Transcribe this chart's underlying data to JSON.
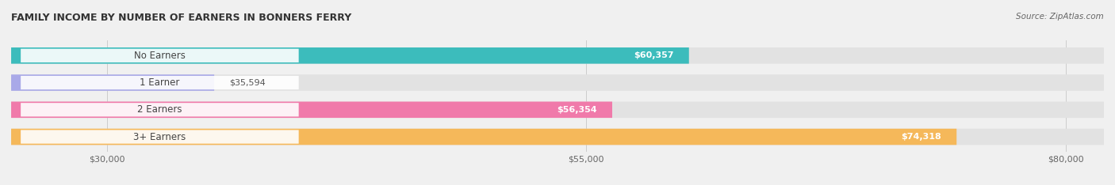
{
  "title": "FAMILY INCOME BY NUMBER OF EARNERS IN BONNERS FERRY",
  "source": "Source: ZipAtlas.com",
  "categories": [
    "No Earners",
    "1 Earner",
    "2 Earners",
    "3+ Earners"
  ],
  "values": [
    60357,
    35594,
    56354,
    74318
  ],
  "labels": [
    "$60,357",
    "$35,594",
    "$56,354",
    "$74,318"
  ],
  "bar_colors": [
    "#3cbcbc",
    "#a9a9e8",
    "#f07aaa",
    "#f5b85a"
  ],
  "xmin": 25000,
  "xmax": 82000,
  "xticks": [
    30000,
    55000,
    80000
  ],
  "xtick_labels": [
    "$30,000",
    "$55,000",
    "$80,000"
  ],
  "background_color": "#f0f0f0",
  "bar_background_color": "#e2e2e2",
  "title_fontsize": 9,
  "label_fontsize": 8,
  "source_fontsize": 7.5,
  "cat_fontsize": 8.5
}
